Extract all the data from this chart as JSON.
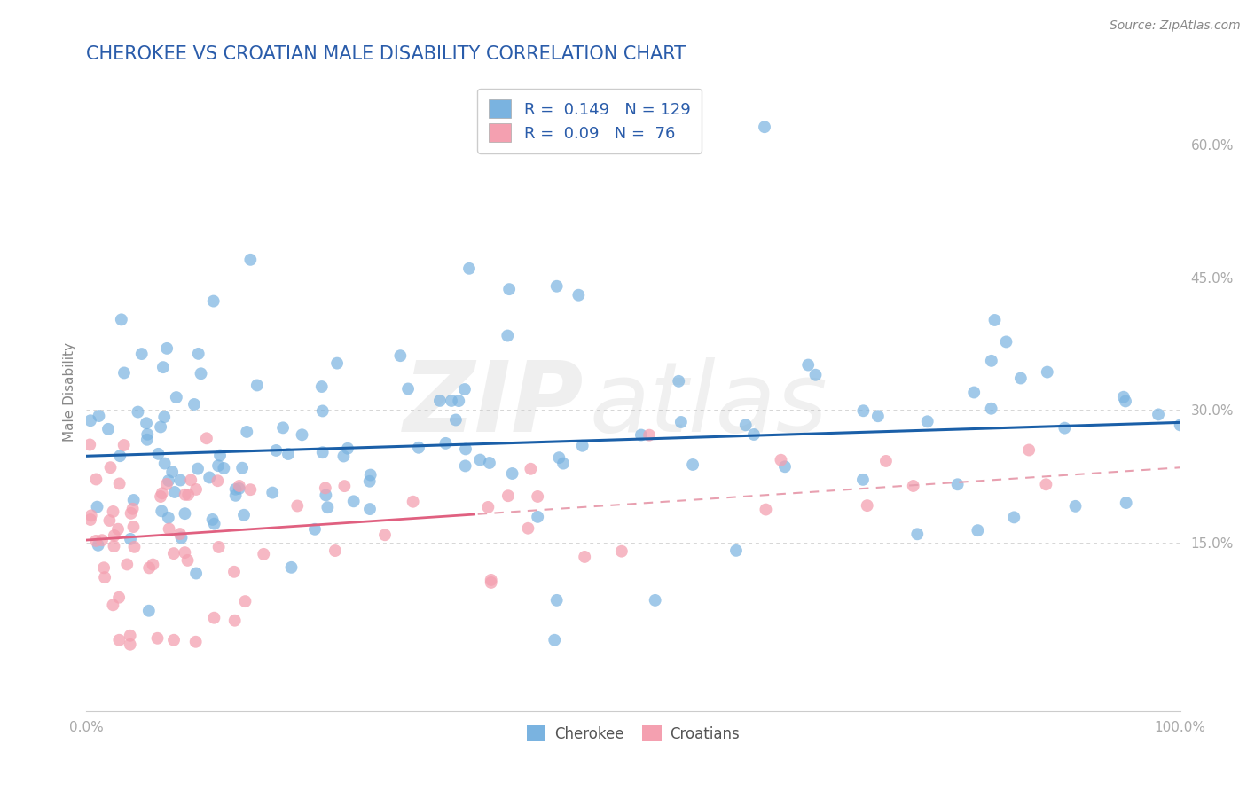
{
  "title": "CHEROKEE VS CROATIAN MALE DISABILITY CORRELATION CHART",
  "source": "Source: ZipAtlas.com",
  "ylabel": "Male Disability",
  "xlim": [
    0.0,
    1.0
  ],
  "ylim": [
    -0.04,
    0.68
  ],
  "ytick_positions": [
    0.15,
    0.3,
    0.45,
    0.6
  ],
  "yticklabels": [
    "15.0%",
    "30.0%",
    "45.0%",
    "60.0%"
  ],
  "xticklabels": [
    "0.0%",
    "",
    "",
    "",
    "100.0%"
  ],
  "cherokee_R": 0.149,
  "cherokee_N": 129,
  "croatian_R": 0.09,
  "croatian_N": 76,
  "cherokee_color": "#7ab3e0",
  "croatian_color": "#f4a0b0",
  "cherokee_line_color": "#1a5fa8",
  "croatian_line_solid_color": "#e06080",
  "croatian_line_dash_color": "#e8a0b0",
  "title_color": "#2a5caa",
  "legend_text_color": "#2a5caa",
  "grid_color": "#cccccc",
  "background_color": "#ffffff",
  "source_color": "#888888",
  "axis_label_color": "#888888",
  "tick_label_color": "#aaaaaa"
}
